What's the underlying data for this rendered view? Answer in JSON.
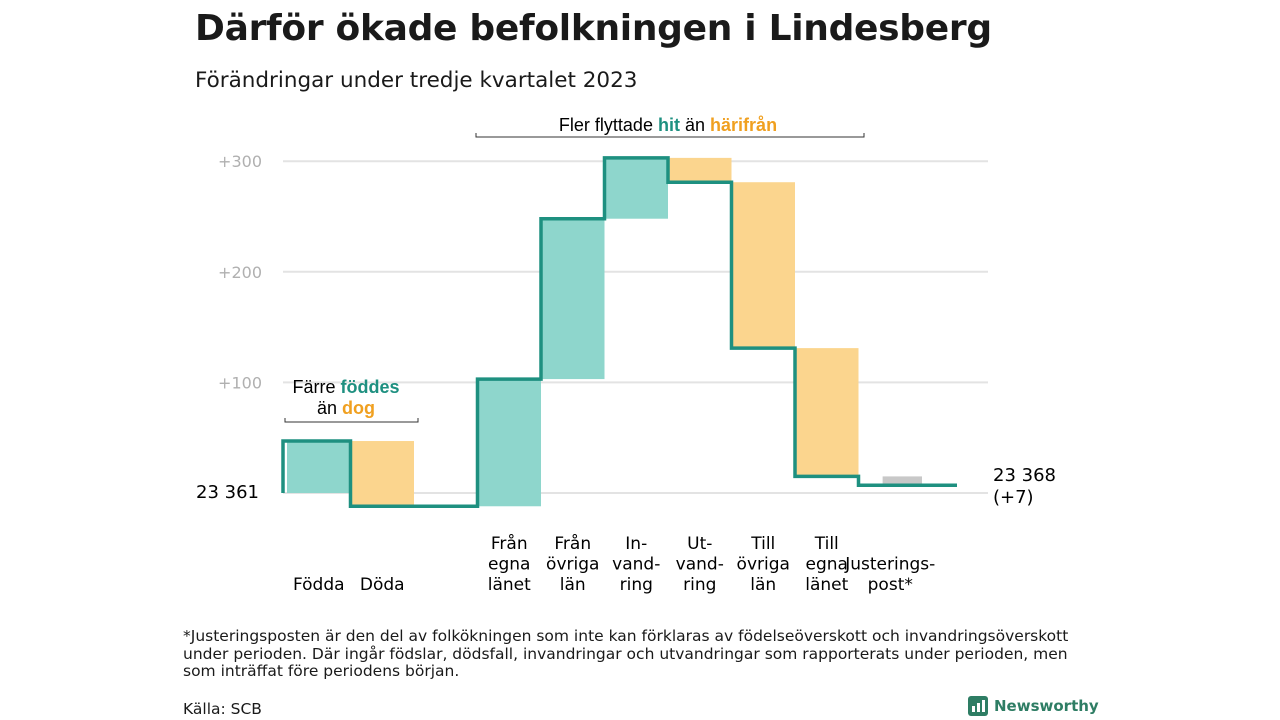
{
  "title": "Därför ökade befolkningen i Lindesberg",
  "subtitle": "Förändringar under tredje kvartalet 2023",
  "footnote": "*Justeringsposten är den del av folkökningen som inte kan förklaras av födelseöverskott och invandringsöverskott under perioden. Där ingår födslar, dödsfall, invandringar och utvandringar som rapporterats under perioden, men som inträffat före periodens början.",
  "source": "Källa: SCB",
  "brand": "Newsworthy",
  "colors": {
    "increase": "#8ed6cc",
    "decrease": "#fbd58e",
    "adjustment": "#c8c8c8",
    "line": "#1e9080",
    "gridline": "#e3e3e3",
    "tick": "#b0b0b0",
    "teal_text": "#1e9080",
    "orange_text": "#f0a020"
  },
  "chart_data": {
    "type": "waterfall",
    "start_label": "23  361",
    "end_label": "23 368",
    "end_change_label": "(+7)",
    "y_tick_labels": [
      "+100",
      "+200",
      "+300"
    ],
    "y_ticks": [
      100,
      200,
      300
    ],
    "ylim": [
      -15,
      305
    ],
    "grid": true,
    "steps": [
      {
        "label": [
          "Födda"
        ],
        "change": 47
      },
      {
        "label": [
          "Döda"
        ],
        "change": -59
      },
      {
        "label": [],
        "change": 0
      },
      {
        "label": [
          "Från",
          "egna",
          "länet"
        ],
        "change": 115
      },
      {
        "label": [
          "Från",
          "övriga",
          "län"
        ],
        "change": 145
      },
      {
        "label": [
          "In-",
          "vand-",
          "ring"
        ],
        "change": 55
      },
      {
        "label": [
          "Ut-",
          "vand-",
          "ring"
        ],
        "change": -22
      },
      {
        "label": [
          "Till",
          "övriga",
          "län"
        ],
        "change": -150
      },
      {
        "label": [
          "Till",
          "egna",
          "länet"
        ],
        "change": -116
      },
      {
        "label": [
          "Justerings-",
          "post*"
        ],
        "change": -8
      }
    ],
    "annotations": {
      "birth": {
        "line1": "Färre",
        "hi1": "föddes",
        "line2": "än",
        "hi2": "dog"
      },
      "migration": {
        "pre": "Fler flyttade",
        "hi1": "hit",
        "mid": "än",
        "hi2": "härifrån"
      }
    }
  }
}
